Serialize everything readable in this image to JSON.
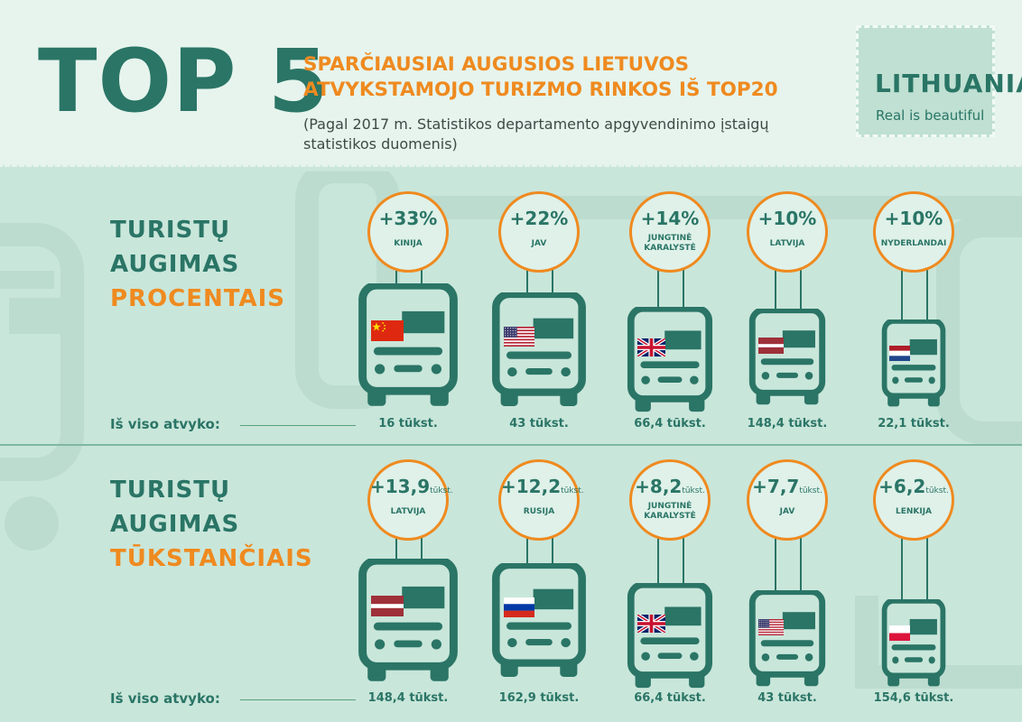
{
  "header": {
    "top_label": "TOP 5",
    "headline_line1": "SPARČIAUSIAI AUGUSIOS LIETUVOS",
    "headline_line2": "ATVYKSTAMOJO TURIZMO RINKOS IŠ TOP20",
    "subheadline_line1": "(Pagal 2017 m. Statistikos departamento apgyvendinimo įstaigų",
    "subheadline_line2": "statistikos duomenis)"
  },
  "logo": {
    "name": "LITHUANIA",
    "tagline": "Real is beautiful"
  },
  "colors": {
    "primary": "#2a7566",
    "accent": "#ef8a1f",
    "background": "#c9e6da",
    "header_bg": "#e6f4ed"
  },
  "sections": [
    {
      "title_line1": "TURISTŲ",
      "title_line2": "AUGIMAS",
      "title_line3": "PROCENTAIS",
      "total_label": "Iš viso atvyko:",
      "items": [
        {
          "value": "+33%",
          "unit": "",
          "country_line1": "KINIJA",
          "country_line2": "",
          "flag": "cn-flag-icon",
          "total": "16 tūkst."
        },
        {
          "value": "+22%",
          "unit": "",
          "country_line1": "JAV",
          "country_line2": "",
          "flag": "us-flag-icon",
          "total": "43 tūkst."
        },
        {
          "value": "+14%",
          "unit": "",
          "country_line1": "JUNGTINĖ",
          "country_line2": "KARALYSTĖ",
          "flag": "uk-flag-icon",
          "total": "66,4 tūkst."
        },
        {
          "value": "+10%",
          "unit": "",
          "country_line1": "LATVIJA",
          "country_line2": "",
          "flag": "lv-flag-icon",
          "total": "148,4 tūkst."
        },
        {
          "value": "+10%",
          "unit": "",
          "country_line1": "NYDERLANDAI",
          "country_line2": "",
          "flag": "nl-flag-icon",
          "total": "22,1 tūkst."
        }
      ]
    },
    {
      "title_line1": "TURISTŲ",
      "title_line2": "AUGIMAS",
      "title_line3": "TŪKSTANČIAIS",
      "total_label": "Iš viso atvyko:",
      "items": [
        {
          "value": "+13,9",
          "unit": "tūkst.",
          "country_line1": "LATVIJA",
          "country_line2": "",
          "flag": "lv-flag-icon",
          "total": "148,4 tūkst."
        },
        {
          "value": "+12,2",
          "unit": "tūkst.",
          "country_line1": "RUSIJA",
          "country_line2": "",
          "flag": "ru-flag-icon",
          "total": "162,9 tūkst."
        },
        {
          "value": "+8,2",
          "unit": "tūkst.",
          "country_line1": "JUNGTINĖ",
          "country_line2": "KARALYSTĖ",
          "flag": "uk-flag-icon",
          "total": "66,4 tūkst."
        },
        {
          "value": "+7,7",
          "unit": "tūkst.",
          "country_line1": "JAV",
          "country_line2": "",
          "flag": "us-flag-icon",
          "total": "43 tūkst."
        },
        {
          "value": "+6,2",
          "unit": "tūkst.",
          "country_line1": "LENKIJA",
          "country_line2": "",
          "flag": "pl-flag-icon",
          "total": "154,6 tūkst."
        }
      ]
    }
  ]
}
